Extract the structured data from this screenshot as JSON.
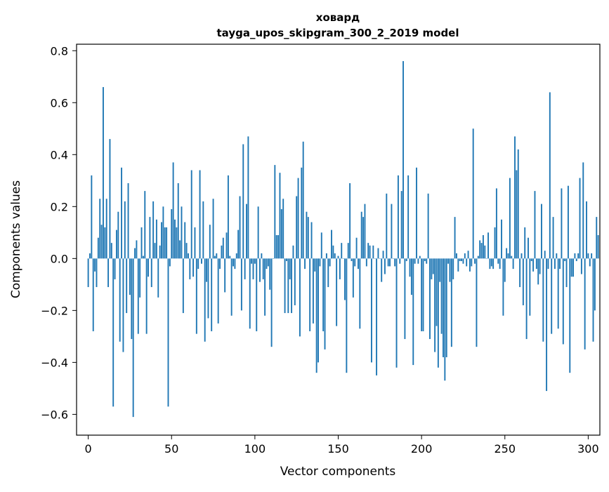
{
  "chart_data": {
    "type": "bar",
    "title": "ховард",
    "subtitle": "tayga_upos_skipgram_300_2_2019 model",
    "xlabel": "Vector components",
    "ylabel": "Components values",
    "xlim": [
      -7,
      307
    ],
    "ylim": [
      -0.68,
      0.825
    ],
    "xticks": [
      0,
      50,
      100,
      150,
      200,
      250,
      300
    ],
    "xtick_labels": [
      "0",
      "50",
      "100",
      "150",
      "200",
      "250",
      "300"
    ],
    "yticks": [
      -0.6,
      -0.4,
      -0.2,
      0.0,
      0.2,
      0.4,
      0.6,
      0.8
    ],
    "ytick_labels": [
      "−0.6",
      "−0.4",
      "−0.2",
      "0.0",
      "0.2",
      "0.4",
      "0.6",
      "0.8"
    ],
    "grid": false,
    "bar_color": "#1f77b4",
    "values": [
      -0.11,
      0.02,
      0.32,
      -0.28,
      -0.05,
      -0.11,
      0.08,
      0.23,
      0.13,
      0.66,
      0.12,
      0.23,
      -0.11,
      0.46,
      0.06,
      -0.57,
      -0.08,
      0.11,
      0.18,
      -0.32,
      0.35,
      -0.36,
      0.22,
      -0.21,
      0.29,
      -0.14,
      -0.31,
      -0.61,
      0.04,
      0.07,
      -0.29,
      -0.15,
      0.12,
      0.01,
      0.26,
      -0.29,
      -0.07,
      0.16,
      -0.11,
      0.22,
      0.06,
      0.15,
      -0.15,
      0.05,
      0.14,
      0.2,
      0.12,
      0.12,
      -0.57,
      -0.03,
      0.19,
      0.37,
      0.15,
      0.12,
      0.29,
      0.07,
      0.2,
      -0.21,
      0.14,
      0.06,
      0.02,
      -0.08,
      0.34,
      -0.07,
      0.12,
      -0.29,
      -0.04,
      0.34,
      -0.02,
      0.22,
      -0.32,
      -0.09,
      -0.23,
      0.13,
      -0.28,
      0.23,
      0.01,
      0.02,
      -0.25,
      -0.04,
      0.05,
      0.08,
      -0.13,
      0.1,
      0.32,
      0.01,
      -0.22,
      -0.03,
      -0.04,
      0.02,
      0.11,
      0.24,
      -0.2,
      0.44,
      -0.08,
      0.21,
      0.47,
      -0.27,
      -0.02,
      -0.08,
      -0.02,
      -0.28,
      0.2,
      -0.09,
      0.02,
      -0.08,
      -0.22,
      -0.04,
      -0.03,
      -0.12,
      -0.34,
      0.0,
      0.36,
      0.09,
      0.09,
      0.33,
      0.19,
      0.23,
      -0.21,
      -0.01,
      -0.21,
      -0.08,
      -0.21,
      0.05,
      -0.18,
      0.24,
      0.31,
      -0.3,
      0.35,
      0.45,
      -0.04,
      0.18,
      0.16,
      -0.28,
      0.14,
      -0.25,
      -0.05,
      -0.44,
      -0.4,
      -0.03,
      0.1,
      -0.28,
      -0.35,
      0.02,
      -0.11,
      -0.03,
      0.11,
      0.05,
      0.02,
      -0.26,
      0.01,
      -0.08,
      0.06,
      0.0,
      -0.16,
      -0.44,
      0.06,
      0.29,
      -0.01,
      -0.15,
      -0.03,
      0.08,
      -0.04,
      -0.27,
      0.18,
      0.16,
      0.21,
      -0.03,
      0.06,
      0.05,
      -0.4,
      0.05,
      0.0,
      -0.45,
      0.04,
      0.0,
      -0.09,
      0.03,
      -0.06,
      0.25,
      -0.03,
      -0.03,
      0.21,
      0.0,
      -0.03,
      -0.42,
      0.32,
      -0.02,
      0.26,
      0.76,
      -0.31,
      -0.01,
      0.32,
      -0.07,
      -0.14,
      -0.41,
      -0.02,
      0.35,
      -0.02,
      0.01,
      -0.28,
      -0.28,
      -0.01,
      -0.02,
      0.25,
      -0.31,
      -0.08,
      -0.06,
      -0.36,
      -0.26,
      -0.42,
      -0.09,
      -0.29,
      -0.38,
      -0.47,
      -0.38,
      -0.02,
      -0.09,
      -0.34,
      -0.08,
      0.16,
      0.02,
      -0.05,
      -0.01,
      -0.01,
      -0.02,
      0.02,
      -0.03,
      0.03,
      -0.05,
      -0.03,
      0.5,
      -0.02,
      -0.34,
      0.01,
      0.07,
      0.06,
      0.09,
      0.05,
      -0.0,
      0.1,
      -0.04,
      -0.03,
      -0.04,
      0.12,
      0.27,
      -0.02,
      -0.04,
      0.15,
      -0.22,
      -0.09,
      0.04,
      0.02,
      0.31,
      0.01,
      -0.04,
      0.47,
      0.34,
      0.42,
      -0.11,
      0.02,
      -0.18,
      0.12,
      -0.31,
      0.08,
      -0.22,
      -0.01,
      -0.05,
      0.26,
      -0.04,
      -0.1,
      -0.06,
      0.21,
      -0.32,
      0.03,
      -0.51,
      -0.04,
      0.64,
      -0.29,
      0.16,
      -0.04,
      0.02,
      -0.27,
      -0.04,
      0.27,
      -0.33,
      -0.01,
      -0.11,
      0.28,
      -0.44,
      -0.07,
      -0.07,
      0.02,
      -0.01,
      0.02,
      0.31,
      -0.06,
      0.37,
      -0.35,
      0.22,
      0.02,
      -0.03,
      0.02,
      -0.32,
      -0.2,
      0.16,
      0.09
    ]
  }
}
